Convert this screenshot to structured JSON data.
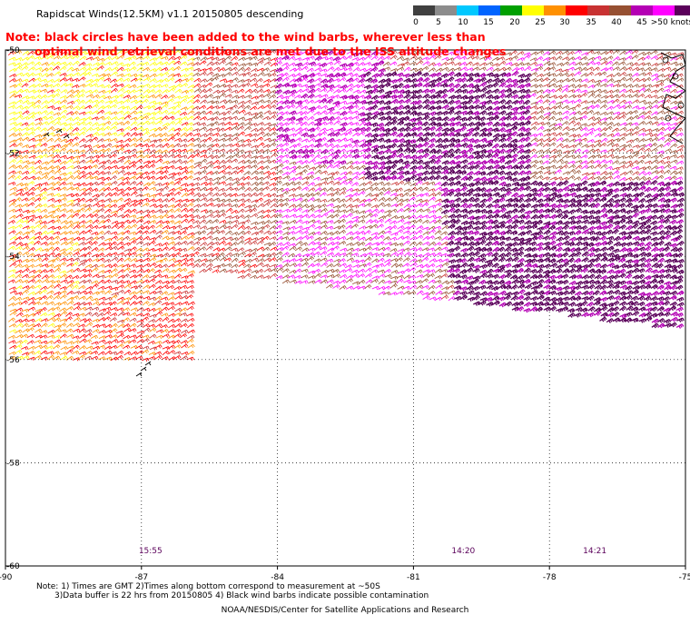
{
  "title": "Rapidscat Winds(12.5KM) v1.1 20150805 descending",
  "note": {
    "line1": "Note: black circles have been added to the wind barbs, wherever less than",
    "line2": "optimal wind retrieval conditions are met due to the ISS altitude changes"
  },
  "colorbar": {
    "labels": [
      "0",
      "5",
      "10",
      "15",
      "20",
      "25",
      "30",
      "35",
      "40",
      "45",
      ">50 knots"
    ],
    "colors": [
      "#404040",
      "#8c8c8c",
      "#00c8ff",
      "#0064ff",
      "#00a000",
      "#ffff00",
      "#ff9000",
      "#ff0000",
      "#c83232",
      "#965032",
      "#b400b4",
      "#ff00ff",
      "#5a005a"
    ]
  },
  "map": {
    "x_ticks": [
      "-90",
      "-87",
      "-84",
      "-81",
      "-78",
      "-75"
    ],
    "y_ticks": [
      "-50",
      "-52",
      "-54",
      "-56",
      "-58",
      "-60"
    ],
    "times": [
      {
        "label": "15:55",
        "lon": -86.8
      },
      {
        "label": "14:20",
        "lon": -79.9
      },
      {
        "label": "14:21",
        "lon": -77.0
      }
    ],
    "time_color": "#5a005a",
    "coast_color": "#000000",
    "grid": "dotted"
  },
  "footer": {
    "notes": "Note: 1) Times are GMT 2)Times along bottom correspond to measurement at ~50S\n       3)Data buffer is 22 hrs from 20150805 4) Black wind barbs indicate possible contamination",
    "credit": "NOAA/NESDIS/Center for Satellite Applications and Research"
  }
}
